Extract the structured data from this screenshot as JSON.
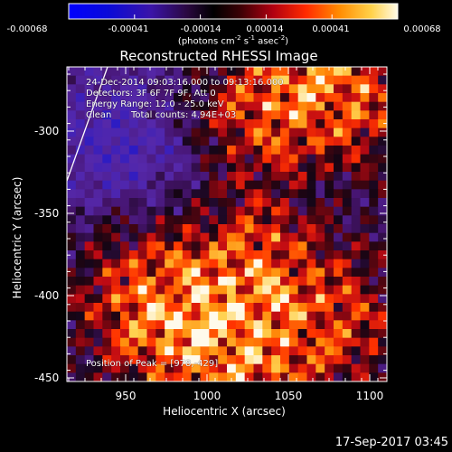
{
  "title": "Reconstructed RHESSI Image",
  "colorbar": {
    "tick_labels": [
      "-0.00068",
      "-0.00041",
      "-0.00014",
      "0.00014",
      "0.00041",
      "0.00068"
    ],
    "units": {
      "pre": "(photons cm",
      "exp1": "-2",
      "mid1": " s",
      "exp2": "-1",
      "mid2": " asec",
      "exp3": "-2",
      "post": ")"
    },
    "range": [
      -0.00068,
      0.00068
    ]
  },
  "image_info": {
    "time": "24-Dec-2014 09:03:16.000 to 09:13:16.000",
    "detectors": "Detectors: 3F 6F 7F 9F, Att 0",
    "energy": "Energy Range: 12.0 - 25.0 keV",
    "clean_label": "Clean",
    "total_counts": "Total counts: 4.94E+03",
    "peak": "Position of Peak = [978,-429]"
  },
  "axes": {
    "xlabel": "Heliocentric X (arcsec)",
    "ylabel": "Heliocentric Y (arcsec)",
    "xticks": [
      "950",
      "1000",
      "1050",
      "1100"
    ],
    "yticks": [
      "-300",
      "-350",
      "-400",
      "-450"
    ],
    "xlim": [
      916,
      1114
    ],
    "ylim": [
      -455,
      -255
    ]
  },
  "timestamp": "17-Sep-2017 03:45",
  "colors": {
    "background": "#000000",
    "foreground": "#ffffff"
  }
}
